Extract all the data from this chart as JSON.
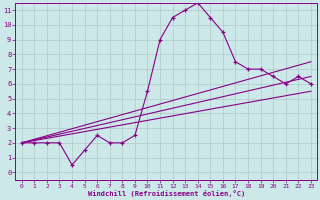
{
  "xlabel": "Windchill (Refroidissement éolien,°C)",
  "background_color": "#cce8e8",
  "grid_color": "#b0c8c8",
  "line_color": "#880088",
  "xlim": [
    -0.5,
    23.5
  ],
  "ylim": [
    -0.5,
    11.5
  ],
  "xticks": [
    0,
    1,
    2,
    3,
    4,
    5,
    6,
    7,
    8,
    9,
    10,
    11,
    12,
    13,
    14,
    15,
    16,
    17,
    18,
    19,
    20,
    21,
    22,
    23
  ],
  "yticks": [
    0,
    1,
    2,
    3,
    4,
    5,
    6,
    7,
    8,
    9,
    10,
    11
  ],
  "main_x": [
    0,
    1,
    2,
    3,
    4,
    5,
    6,
    7,
    8,
    9,
    10,
    11,
    12,
    13,
    14,
    15,
    16,
    17,
    18,
    19,
    20,
    21,
    22,
    23
  ],
  "main_y": [
    2,
    2,
    2,
    2,
    0.5,
    1.5,
    2.5,
    2,
    2,
    2.5,
    5.5,
    9,
    10.5,
    11,
    11.5,
    10.5,
    9.5,
    7.5,
    7,
    7,
    6.5,
    6,
    6.5,
    6
  ],
  "line1_x": [
    0,
    23
  ],
  "line1_y": [
    2,
    7.5
  ],
  "line2_x": [
    0,
    23
  ],
  "line2_y": [
    2,
    5.5
  ],
  "line3_x": [
    0,
    23
  ],
  "line3_y": [
    2,
    6.5
  ]
}
